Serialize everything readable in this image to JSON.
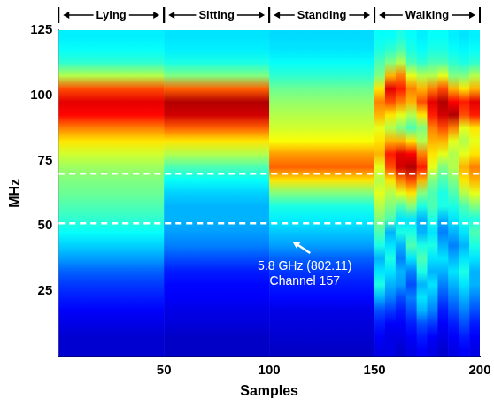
{
  "chart_data": {
    "type": "heatmap",
    "x_label": "Samples",
    "y_label": "MHz",
    "xlim": [
      0,
      200
    ],
    "xticks": [
      50,
      100,
      150,
      200
    ],
    "ylim": [
      0,
      125
    ],
    "yticks": [
      25,
      50,
      75,
      100,
      125
    ],
    "grid": false,
    "color": "jet",
    "color_range": [
      0,
      1
    ],
    "x_edges": [
      0,
      50,
      100,
      150,
      155,
      160,
      165,
      170,
      175,
      180,
      185,
      190,
      195,
      200
    ],
    "y_edges": [
      0,
      5,
      10,
      15,
      20,
      25,
      30,
      35,
      40,
      45,
      50,
      55,
      60,
      65,
      70,
      75,
      80,
      85,
      90,
      95,
      100,
      105,
      110,
      115,
      120,
      125
    ],
    "cells": [
      [
        0.08,
        0.08,
        0.1,
        0.12,
        0.15,
        0.18,
        0.22,
        0.28,
        0.33,
        0.38,
        0.42,
        0.45,
        0.48,
        0.5,
        0.53,
        0.58,
        0.65,
        0.75,
        0.87,
        0.9,
        0.8,
        0.55,
        0.42,
        0.38,
        0.36
      ],
      [
        0.07,
        0.07,
        0.09,
        0.1,
        0.12,
        0.13,
        0.15,
        0.2,
        0.25,
        0.28,
        0.3,
        0.3,
        0.33,
        0.38,
        0.45,
        0.55,
        0.65,
        0.78,
        0.92,
        0.95,
        0.78,
        0.5,
        0.4,
        0.36,
        0.35
      ],
      [
        0.07,
        0.08,
        0.09,
        0.1,
        0.13,
        0.15,
        0.18,
        0.22,
        0.28,
        0.32,
        0.36,
        0.4,
        0.5,
        0.65,
        0.78,
        0.72,
        0.62,
        0.58,
        0.55,
        0.52,
        0.48,
        0.42,
        0.38,
        0.35,
        0.34
      ],
      [
        0.1,
        0.12,
        0.15,
        0.2,
        0.3,
        0.4,
        0.35,
        0.3,
        0.4,
        0.45,
        0.5,
        0.55,
        0.6,
        0.55,
        0.6,
        0.7,
        0.65,
        0.6,
        0.7,
        0.75,
        0.65,
        0.5,
        0.45,
        0.4,
        0.38
      ],
      [
        0.1,
        0.1,
        0.12,
        0.18,
        0.25,
        0.3,
        0.35,
        0.4,
        0.35,
        0.3,
        0.45,
        0.5,
        0.55,
        0.65,
        0.8,
        0.85,
        0.7,
        0.55,
        0.65,
        0.8,
        0.9,
        0.7,
        0.5,
        0.42,
        0.38
      ],
      [
        0.08,
        0.1,
        0.12,
        0.15,
        0.2,
        0.28,
        0.3,
        0.25,
        0.3,
        0.4,
        0.35,
        0.45,
        0.6,
        0.75,
        0.92,
        0.9,
        0.7,
        0.5,
        0.6,
        0.75,
        0.85,
        0.75,
        0.55,
        0.45,
        0.4
      ],
      [
        0.1,
        0.12,
        0.15,
        0.2,
        0.25,
        0.2,
        0.25,
        0.35,
        0.45,
        0.4,
        0.35,
        0.5,
        0.65,
        0.8,
        0.95,
        0.88,
        0.65,
        0.45,
        0.55,
        0.7,
        0.75,
        0.6,
        0.45,
        0.4,
        0.38
      ],
      [
        0.12,
        0.15,
        0.2,
        0.3,
        0.35,
        0.3,
        0.4,
        0.45,
        0.4,
        0.3,
        0.3,
        0.4,
        0.5,
        0.7,
        0.85,
        0.75,
        0.55,
        0.5,
        0.65,
        0.8,
        0.7,
        0.55,
        0.42,
        0.38,
        0.36
      ],
      [
        0.1,
        0.12,
        0.18,
        0.25,
        0.3,
        0.35,
        0.3,
        0.35,
        0.4,
        0.35,
        0.4,
        0.45,
        0.45,
        0.5,
        0.6,
        0.65,
        0.7,
        0.75,
        0.85,
        0.9,
        0.75,
        0.55,
        0.45,
        0.4,
        0.38
      ],
      [
        0.08,
        0.1,
        0.12,
        0.15,
        0.2,
        0.25,
        0.3,
        0.35,
        0.3,
        0.25,
        0.3,
        0.4,
        0.4,
        0.45,
        0.5,
        0.6,
        0.7,
        0.8,
        0.92,
        0.95,
        0.8,
        0.6,
        0.45,
        0.4,
        0.38
      ],
      [
        0.1,
        0.12,
        0.15,
        0.2,
        0.25,
        0.3,
        0.35,
        0.3,
        0.25,
        0.3,
        0.35,
        0.4,
        0.45,
        0.5,
        0.55,
        0.55,
        0.6,
        0.75,
        0.95,
        0.88,
        0.7,
        0.5,
        0.42,
        0.38,
        0.36
      ],
      [
        0.12,
        0.15,
        0.2,
        0.25,
        0.3,
        0.35,
        0.4,
        0.35,
        0.3,
        0.35,
        0.4,
        0.45,
        0.55,
        0.65,
        0.7,
        0.6,
        0.55,
        0.6,
        0.8,
        0.85,
        0.65,
        0.5,
        0.4,
        0.37,
        0.35
      ],
      [
        0.1,
        0.12,
        0.15,
        0.2,
        0.25,
        0.3,
        0.3,
        0.35,
        0.4,
        0.45,
        0.4,
        0.5,
        0.6,
        0.7,
        0.75,
        0.65,
        0.6,
        0.65,
        0.85,
        0.9,
        0.7,
        0.55,
        0.42,
        0.38,
        0.36
      ]
    ],
    "segments": [
      {
        "label": "Lying",
        "start": 0,
        "end": 50
      },
      {
        "label": "Sitting",
        "start": 50,
        "end": 100
      },
      {
        "label": "Standing",
        "start": 100,
        "end": 150
      },
      {
        "label": "Walking",
        "start": 150,
        "end": 200
      }
    ],
    "hlines": {
      "values": [
        51,
        70
      ],
      "color": "#ffffff",
      "line_style": "dashed"
    },
    "annotation": {
      "lines": [
        "5.8 GHz (802.11)",
        "Channel 157"
      ],
      "arrow_to": [
        111,
        44
      ],
      "color": "#ffffff"
    }
  }
}
